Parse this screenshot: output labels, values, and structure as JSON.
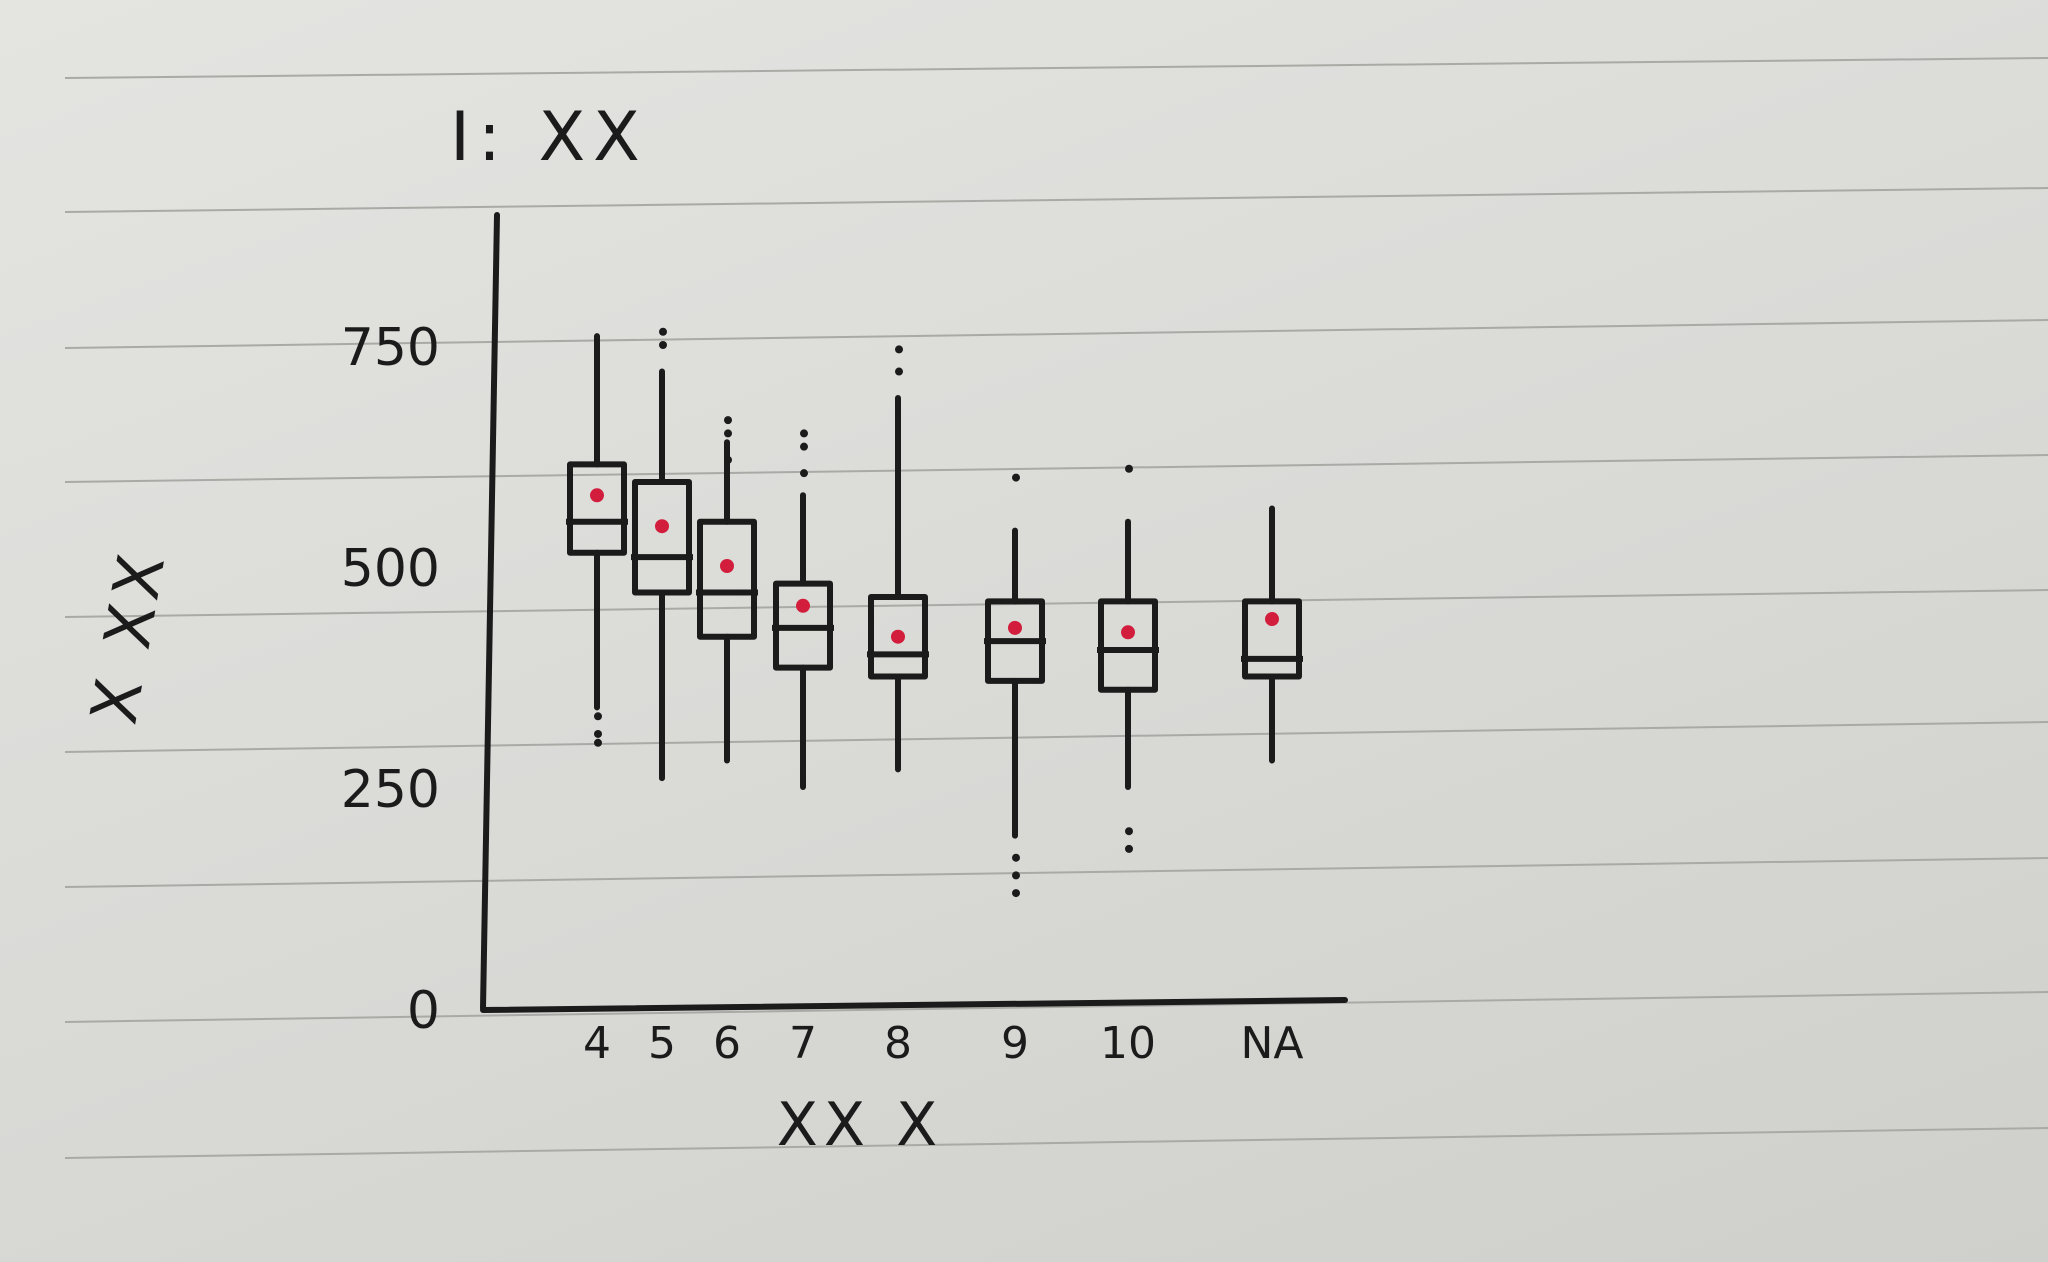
{
  "chart_data": {
    "type": "boxplot",
    "title": "I: XX",
    "xlabel": "XX X",
    "ylabel": "X XX",
    "ylim": [
      0,
      900
    ],
    "y_ticks": [
      {
        "value": 0,
        "label": "0"
      },
      {
        "value": 250,
        "label": "250"
      },
      {
        "value": 500,
        "label": "500"
      },
      {
        "value": 750,
        "label": "750"
      }
    ],
    "grid": false,
    "legend": "none",
    "categories": [
      "4",
      "5",
      "6",
      "7",
      "8",
      "9",
      "10",
      "NA"
    ],
    "boxes": [
      {
        "category": "4",
        "whisker_low": 340,
        "q1": 515,
        "median": 550,
        "q3": 615,
        "whisker_high": 760,
        "mean": 580,
        "outliers": [
          330,
          310,
          300
        ]
      },
      {
        "category": "5",
        "whisker_low": 260,
        "q1": 470,
        "median": 510,
        "q3": 595,
        "whisker_high": 720,
        "mean": 545,
        "outliers": [
          765,
          750
        ]
      },
      {
        "category": "6",
        "whisker_low": 280,
        "q1": 420,
        "median": 470,
        "q3": 550,
        "whisker_high": 640,
        "mean": 500,
        "outliers": [
          665,
          650,
          620
        ]
      },
      {
        "category": "7",
        "whisker_low": 250,
        "q1": 385,
        "median": 430,
        "q3": 480,
        "whisker_high": 580,
        "mean": 455,
        "outliers": [
          650,
          635,
          605
        ]
      },
      {
        "category": "8",
        "whisker_low": 270,
        "q1": 375,
        "median": 400,
        "q3": 465,
        "whisker_high": 690,
        "mean": 420,
        "outliers": [
          745,
          720
        ]
      },
      {
        "category": "9",
        "whisker_low": 195,
        "q1": 370,
        "median": 415,
        "q3": 460,
        "whisker_high": 540,
        "mean": 430,
        "outliers": [
          170,
          150,
          130,
          600
        ]
      },
      {
        "category": "10",
        "whisker_low": 250,
        "q1": 360,
        "median": 405,
        "q3": 460,
        "whisker_high": 550,
        "mean": 425,
        "outliers": [
          200,
          180,
          610
        ]
      },
      {
        "category": "NA",
        "whisker_low": 280,
        "q1": 375,
        "median": 395,
        "q3": 460,
        "whisker_high": 565,
        "mean": 440,
        "outliers": []
      }
    ],
    "colors": {
      "ink": "#1b1b1b",
      "mean_marker": "#d21e3c",
      "paper_line": "#a9a9a5"
    }
  }
}
